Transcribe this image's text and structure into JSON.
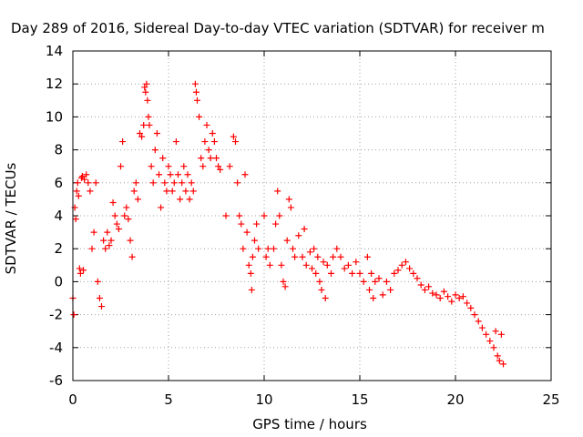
{
  "chart_data": {
    "type": "scatter",
    "title": "Day 289 of 2016, Sidereal Day-to-day VTEC variation (SDTVAR) for receiver m",
    "xlabel": "GPS time / hours",
    "ylabel": "SDTVAR / TECUs",
    "xlim": [
      0,
      25
    ],
    "ylim": [
      -6,
      14
    ],
    "xticks": [
      0,
      5,
      10,
      15,
      20,
      25
    ],
    "yticks": [
      -6,
      -4,
      -2,
      0,
      2,
      4,
      6,
      8,
      10,
      12,
      14
    ],
    "grid": true,
    "marker": "+",
    "color": "#ff0000",
    "series": [
      {
        "name": "SDTVAR",
        "points": [
          [
            0.0,
            -1.0
          ],
          [
            0.05,
            -2.0
          ],
          [
            0.1,
            4.5
          ],
          [
            0.15,
            3.8
          ],
          [
            0.2,
            5.5
          ],
          [
            0.25,
            6.0
          ],
          [
            0.3,
            5.2
          ],
          [
            0.35,
            0.8
          ],
          [
            0.4,
            0.5
          ],
          [
            0.45,
            6.3
          ],
          [
            0.5,
            6.4
          ],
          [
            0.55,
            0.7
          ],
          [
            0.6,
            6.2
          ],
          [
            0.7,
            6.5
          ],
          [
            0.8,
            6.0
          ],
          [
            0.9,
            5.5
          ],
          [
            1.0,
            2.0
          ],
          [
            1.1,
            3.0
          ],
          [
            1.2,
            6.0
          ],
          [
            1.3,
            0.0
          ],
          [
            1.4,
            -1.0
          ],
          [
            1.5,
            -1.5
          ],
          [
            1.6,
            2.5
          ],
          [
            1.7,
            2.0
          ],
          [
            1.8,
            3.0
          ],
          [
            1.9,
            2.2
          ],
          [
            2.0,
            2.5
          ],
          [
            2.1,
            4.8
          ],
          [
            2.2,
            4.0
          ],
          [
            2.3,
            3.5
          ],
          [
            2.4,
            3.2
          ],
          [
            2.5,
            7.0
          ],
          [
            2.6,
            8.5
          ],
          [
            2.7,
            4.0
          ],
          [
            2.8,
            4.5
          ],
          [
            2.9,
            3.8
          ],
          [
            3.0,
            2.5
          ],
          [
            3.1,
            1.5
          ],
          [
            3.2,
            5.5
          ],
          [
            3.3,
            6.0
          ],
          [
            3.4,
            5.0
          ],
          [
            3.5,
            9.0
          ],
          [
            3.6,
            8.8
          ],
          [
            3.7,
            9.5
          ],
          [
            3.75,
            11.8
          ],
          [
            3.8,
            11.5
          ],
          [
            3.85,
            12.0
          ],
          [
            3.9,
            11.0
          ],
          [
            3.95,
            10.0
          ],
          [
            4.0,
            9.5
          ],
          [
            4.1,
            7.0
          ],
          [
            4.2,
            6.0
          ],
          [
            4.3,
            8.0
          ],
          [
            4.4,
            9.0
          ],
          [
            4.5,
            6.5
          ],
          [
            4.6,
            4.5
          ],
          [
            4.7,
            7.5
          ],
          [
            4.8,
            6.0
          ],
          [
            4.9,
            5.5
          ],
          [
            5.0,
            7.0
          ],
          [
            5.1,
            6.5
          ],
          [
            5.2,
            5.5
          ],
          [
            5.3,
            6.0
          ],
          [
            5.4,
            8.5
          ],
          [
            5.5,
            6.5
          ],
          [
            5.6,
            5.0
          ],
          [
            5.7,
            6.0
          ],
          [
            5.8,
            7.0
          ],
          [
            5.9,
            5.5
          ],
          [
            6.0,
            6.5
          ],
          [
            6.1,
            5.0
          ],
          [
            6.2,
            6.0
          ],
          [
            6.3,
            5.5
          ],
          [
            6.4,
            12.0
          ],
          [
            6.45,
            11.5
          ],
          [
            6.5,
            11.0
          ],
          [
            6.6,
            10.0
          ],
          [
            6.7,
            7.5
          ],
          [
            6.8,
            7.0
          ],
          [
            6.9,
            8.5
          ],
          [
            7.0,
            9.5
          ],
          [
            7.1,
            8.0
          ],
          [
            7.2,
            7.5
          ],
          [
            7.3,
            9.0
          ],
          [
            7.4,
            8.5
          ],
          [
            7.5,
            7.5
          ],
          [
            7.6,
            7.0
          ],
          [
            7.7,
            6.8
          ],
          [
            8.0,
            4.0
          ],
          [
            8.2,
            7.0
          ],
          [
            8.4,
            8.8
          ],
          [
            8.5,
            8.5
          ],
          [
            8.6,
            6.0
          ],
          [
            8.7,
            4.0
          ],
          [
            8.8,
            3.5
          ],
          [
            8.9,
            2.0
          ],
          [
            9.0,
            6.5
          ],
          [
            9.1,
            3.0
          ],
          [
            9.2,
            1.0
          ],
          [
            9.3,
            0.5
          ],
          [
            9.35,
            -0.5
          ],
          [
            9.4,
            1.5
          ],
          [
            9.5,
            2.5
          ],
          [
            9.6,
            3.5
          ],
          [
            9.7,
            2.0
          ],
          [
            10.0,
            4.0
          ],
          [
            10.1,
            1.5
          ],
          [
            10.2,
            2.0
          ],
          [
            10.3,
            1.0
          ],
          [
            10.5,
            2.0
          ],
          [
            10.6,
            3.5
          ],
          [
            10.7,
            5.5
          ],
          [
            10.8,
            4.0
          ],
          [
            10.9,
            1.0
          ],
          [
            11.0,
            0.0
          ],
          [
            11.1,
            -0.3
          ],
          [
            11.2,
            2.5
          ],
          [
            11.3,
            5.0
          ],
          [
            11.4,
            4.5
          ],
          [
            11.5,
            2.0
          ],
          [
            11.6,
            1.5
          ],
          [
            11.8,
            2.8
          ],
          [
            12.0,
            1.5
          ],
          [
            12.1,
            3.2
          ],
          [
            12.2,
            1.0
          ],
          [
            12.4,
            1.8
          ],
          [
            12.5,
            0.8
          ],
          [
            12.6,
            2.0
          ],
          [
            12.7,
            0.5
          ],
          [
            12.8,
            1.5
          ],
          [
            12.9,
            0.0
          ],
          [
            13.0,
            -0.5
          ],
          [
            13.1,
            1.2
          ],
          [
            13.2,
            -1.0
          ],
          [
            13.3,
            1.0
          ],
          [
            13.5,
            0.5
          ],
          [
            13.6,
            1.5
          ],
          [
            13.8,
            2.0
          ],
          [
            14.0,
            1.5
          ],
          [
            14.2,
            0.8
          ],
          [
            14.4,
            1.0
          ],
          [
            14.6,
            0.5
          ],
          [
            14.8,
            1.2
          ],
          [
            15.0,
            0.5
          ],
          [
            15.2,
            0.0
          ],
          [
            15.4,
            1.5
          ],
          [
            15.5,
            -0.5
          ],
          [
            15.6,
            0.5
          ],
          [
            15.7,
            -1.0
          ],
          [
            15.8,
            0.0
          ],
          [
            16.0,
            0.2
          ],
          [
            16.2,
            -0.8
          ],
          [
            16.4,
            0.0
          ],
          [
            16.6,
            -0.5
          ],
          [
            16.8,
            0.5
          ],
          [
            17.0,
            0.7
          ],
          [
            17.2,
            1.0
          ],
          [
            17.4,
            1.2
          ],
          [
            17.6,
            0.8
          ],
          [
            17.8,
            0.5
          ],
          [
            18.0,
            0.2
          ],
          [
            18.2,
            -0.2
          ],
          [
            18.4,
            -0.5
          ],
          [
            18.6,
            -0.3
          ],
          [
            18.8,
            -0.7
          ],
          [
            19.0,
            -0.8
          ],
          [
            19.2,
            -1.0
          ],
          [
            19.4,
            -0.6
          ],
          [
            19.6,
            -0.9
          ],
          [
            19.8,
            -1.2
          ],
          [
            20.0,
            -0.8
          ],
          [
            20.2,
            -1.0
          ],
          [
            20.4,
            -0.9
          ],
          [
            20.6,
            -1.3
          ],
          [
            20.8,
            -1.6
          ],
          [
            21.0,
            -2.0
          ],
          [
            21.2,
            -2.4
          ],
          [
            21.4,
            -2.8
          ],
          [
            21.6,
            -3.2
          ],
          [
            21.8,
            -3.6
          ],
          [
            22.0,
            -4.0
          ],
          [
            22.1,
            -3.0
          ],
          [
            22.2,
            -4.5
          ],
          [
            22.3,
            -4.8
          ],
          [
            22.4,
            -3.2
          ],
          [
            22.5,
            -5.0
          ]
        ]
      }
    ]
  }
}
